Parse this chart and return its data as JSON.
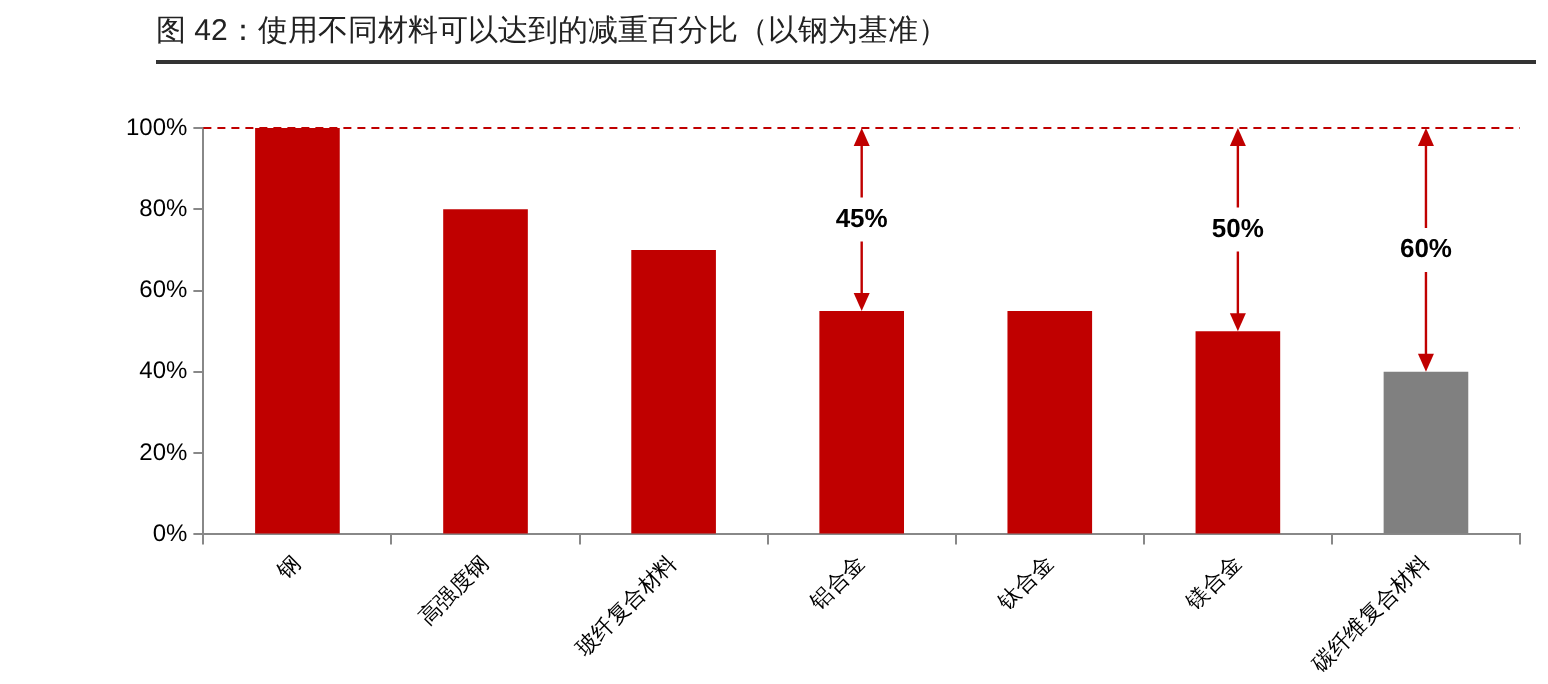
{
  "chart_data": {
    "type": "bar",
    "title": "图 42：使用不同材料可以达到的减重百分比（以钢为基准）",
    "categories": [
      "钢",
      "高强度钢",
      "玻纤复合材料",
      "铝合金",
      "钛合金",
      "镁合金",
      "碳纤维复合材料"
    ],
    "values": [
      100,
      80,
      70,
      55,
      55,
      50,
      40
    ],
    "colors": [
      "#c00000",
      "#c00000",
      "#c00000",
      "#c00000",
      "#c00000",
      "#c00000",
      "#808080"
    ],
    "ylim": [
      0,
      100
    ],
    "yticks": [
      {
        "value": 0,
        "label": "0%"
      },
      {
        "value": 20,
        "label": "20%"
      },
      {
        "value": 40,
        "label": "40%"
      },
      {
        "value": 60,
        "label": "60%"
      },
      {
        "value": 80,
        "label": "80%"
      },
      {
        "value": 100,
        "label": "100%"
      }
    ],
    "ref_lines": [
      {
        "axis": "y",
        "value": 100,
        "color": "#c00000",
        "line_style": "dashed"
      }
    ],
    "annotations": [
      {
        "text": "45%",
        "x": "铝合金",
        "y": 55
      },
      {
        "text": "50%",
        "x": "镁合金",
        "y": 50
      },
      {
        "text": "60%",
        "x": "碳纤维复合材料",
        "y": 40
      }
    ],
    "grid": false,
    "legend": false
  }
}
